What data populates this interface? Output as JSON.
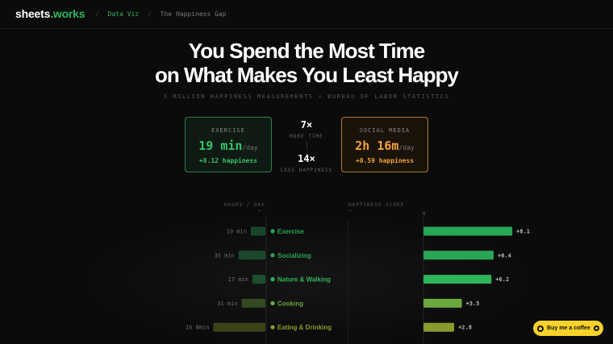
{
  "header": {
    "brand_main": "sheets",
    "brand_dot": ".",
    "brand_accent": "works",
    "breadcrumbs": [
      "Data Viz",
      "The Happiness Gap"
    ],
    "separator": "/"
  },
  "hero": {
    "title_line1": "You Spend the Most Time",
    "title_line2": "on What Makes You Least Happy",
    "subtitle": "3 MILLION HAPPINESS MEASUREMENTS × BUREAU OF LABOR STATISTICS"
  },
  "stats": {
    "exercise": {
      "label": "EXERCISE",
      "value": "19 min",
      "unit": "/day",
      "happiness": "+8.12 happiness"
    },
    "social_media": {
      "label": "SOCIAL MEDIA",
      "value": "2h 16m",
      "unit": "/day",
      "happiness": "+0.59 happiness"
    },
    "more_time": {
      "value": "7×",
      "label": "MORE TIME"
    },
    "less_happiness": {
      "value": "14×",
      "label": "LESS HAPPINESS"
    }
  },
  "chart_data": {
    "type": "bar",
    "left_axis_label": "HOURS / DAY",
    "left_axis_arrow": "←",
    "right_axis_label": "HAPPINESS SCORE",
    "right_axis_arrow": "→",
    "right_axis_zero": "0",
    "categories": [
      "Exercise",
      "Socializing",
      "Nature & Walking",
      "Cooking",
      "Eating & Drinking"
    ],
    "time_minutes": [
      19,
      35,
      17,
      31,
      68
    ],
    "time_labels": [
      "19 min",
      "35 min",
      "17 min",
      "31 min",
      "1h 8min"
    ],
    "happiness": [
      8.1,
      6.4,
      6.2,
      3.5,
      2.8
    ],
    "happiness_labels": [
      "+8.1",
      "+6.4",
      "+6.2",
      "+3.5",
      "+2.8"
    ],
    "colors": [
      "#27a653",
      "#2aa556",
      "#2fb35b",
      "#6ba83e",
      "#8a9a2c"
    ]
  },
  "cta": {
    "label": "Buy me a coffee"
  }
}
